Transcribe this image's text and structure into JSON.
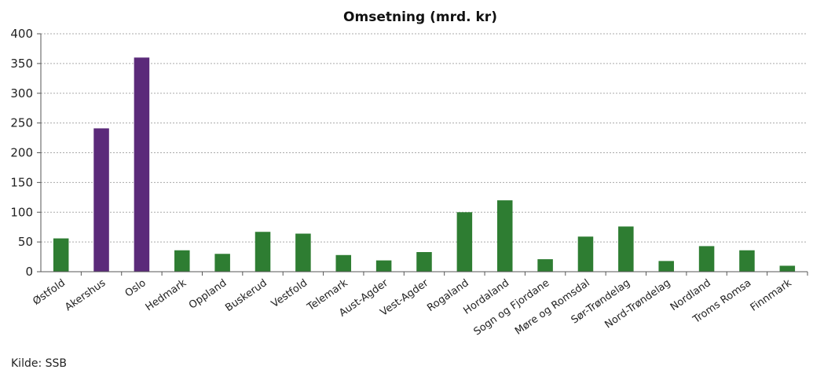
{
  "chart_data": {
    "type": "bar",
    "title": "Omsetning (mrd. kr)",
    "xlabel": "",
    "ylabel": "",
    "ylim": [
      0,
      400
    ],
    "yticks": [
      0,
      50,
      100,
      150,
      200,
      250,
      300,
      350,
      400
    ],
    "grid": true,
    "categories": [
      "Østfold",
      "Akershus",
      "Oslo",
      "Hedmark",
      "Oppland",
      "Buskerud",
      "Vestfold",
      "Telemark",
      "Aust-Agder",
      "Vest-Agder",
      "Rogaland",
      "Hordaland",
      "Sogn og Fjordane",
      "Møre og Romsdal",
      "Sør-Trøndelag",
      "Nord-Trøndelag",
      "Nordland",
      "Troms Romsa",
      "Finnmark"
    ],
    "values": [
      56,
      241,
      360,
      36,
      30,
      67,
      64,
      28,
      19,
      33,
      100,
      120,
      21,
      59,
      76,
      18,
      43,
      36,
      10
    ],
    "bar_colors": [
      "#2e7d32",
      "#5b2a7a",
      "#5b2a7a",
      "#2e7d32",
      "#2e7d32",
      "#2e7d32",
      "#2e7d32",
      "#2e7d32",
      "#2e7d32",
      "#2e7d32",
      "#2e7d32",
      "#2e7d32",
      "#2e7d32",
      "#2e7d32",
      "#2e7d32",
      "#2e7d32",
      "#2e7d32",
      "#2e7d32",
      "#2e7d32"
    ]
  },
  "source_note": "Kilde: SSB",
  "colors": {
    "axis": "#555555",
    "grid": "#aaaaaa"
  }
}
